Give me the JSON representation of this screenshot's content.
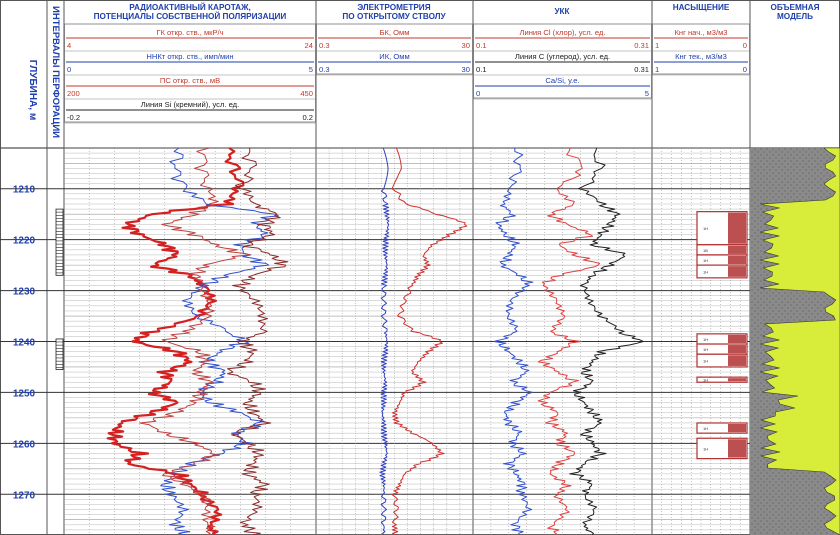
{
  "colors": {
    "border": "#555555",
    "header_blue": "#1f3fae",
    "header_red": "#c0392b",
    "gr_curve": "#d42020",
    "nnk_curve": "#3050d0",
    "ps_curve": "#c04040",
    "si_curve": "#8a2a2a",
    "bk_curve": "#d03030",
    "ik_curve": "#3040c0",
    "cl_curve": "#e04040",
    "c_curve": "#202020",
    "casi_curve": "#3050d0",
    "sat_fill": "#b03030",
    "model_gray": "#8a8a8a",
    "model_yellow": "#d8ec3a"
  },
  "depth_column": {
    "title": "ГЛУБИНА, м"
  },
  "perf_column": {
    "title": "ИНТЕРВАЛЫ ПЕРФОРАЦИИ"
  },
  "tracks": {
    "radio": {
      "title": "РАДИОАКТИВНЫЙ КАРОТАЖ,\nПОТЕНЦИАЛЫ СОБСТВЕННОЙ ПОЛЯРИЗАЦИИ",
      "scales": [
        {
          "label": "ГК откр. ств., мкР/ч",
          "min": "4",
          "max": "24",
          "color_key": "red"
        },
        {
          "label": "ННКт откр. ств., имп/мин",
          "min": "0",
          "max": "5",
          "color_key": "blue"
        },
        {
          "label": "ПС откр. ств., мВ",
          "min": "200",
          "max": "450",
          "color_key": "red"
        },
        {
          "label": "Линия Si (кремний), усл. ед.",
          "min": "-0.2",
          "max": "0.2",
          "color_key": "dark"
        }
      ]
    },
    "electro": {
      "title": "ЭЛЕКТРОМЕТРИЯ\nПО ОТКРЫТОМУ СТВОЛУ",
      "scales": [
        {
          "label": "БК, Омм",
          "min": "0.3",
          "max": "30",
          "color_key": "red"
        },
        {
          "label": "ИК, Омм",
          "min": "0.3",
          "max": "30",
          "color_key": "blue"
        }
      ]
    },
    "ukk": {
      "title": "УКК",
      "scales": [
        {
          "label": "Линия Cl (хлор), усл. ед.",
          "min": "0.1",
          "max": "0.31",
          "color_key": "red"
        },
        {
          "label": "Линия C (углерод), усл. ед.",
          "min": "0.1",
          "max": "0.31",
          "color_key": "dark"
        },
        {
          "label": "Ca/Si, у.е.",
          "min": "0",
          "max": "5",
          "color_key": "blue"
        }
      ]
    },
    "saturation": {
      "title": "НАСЫЩЕНИЕ",
      "scales": [
        {
          "label": "Кнг нач., м3/м3",
          "min": "1",
          "max": "0",
          "color_key": "red"
        },
        {
          "label": "Кнг тек., м3/м3",
          "min": "1",
          "max": "0",
          "color_key": "blue"
        }
      ]
    },
    "model": {
      "title": "ОБЪЕМНАЯ\nМОДЕЛЬ"
    }
  },
  "chart_data": {
    "type": "line",
    "depth_range": [
      1202,
      1278
    ],
    "depth_ticks": [
      1210,
      1220,
      1230,
      1240,
      1250,
      1260,
      1270
    ],
    "perforation_intervals": [
      [
        1214,
        1227
      ],
      [
        1239.5,
        1245.5
      ]
    ],
    "sat_intervals": [
      {
        "top": 1214.5,
        "bottom": 1221,
        "label": "1Н"
      },
      {
        "top": 1221,
        "bottom": 1223,
        "label": "1В"
      },
      {
        "top": 1223,
        "bottom": 1225,
        "label": "1Н"
      },
      {
        "top": 1225,
        "bottom": 1227.5,
        "label": "1Н"
      },
      {
        "top": 1238.5,
        "bottom": 1240.5,
        "label": "1Н"
      },
      {
        "top": 1240.5,
        "bottom": 1242.5,
        "label": "1Н"
      },
      {
        "top": 1242.5,
        "bottom": 1245,
        "label": "1Н"
      },
      {
        "top": 1247,
        "bottom": 1248,
        "label": "1Н"
      },
      {
        "top": 1256,
        "bottom": 1258,
        "label": "1Н"
      },
      {
        "top": 1259,
        "bottom": 1263,
        "label": "1Н"
      }
    ],
    "series": [
      {
        "name": "ГК откр. ств., мкР/ч",
        "track": "radio",
        "min": 4,
        "max": 24,
        "depth": [
          1202,
          1206,
          1210,
          1213,
          1215,
          1217,
          1219,
          1221,
          1223,
          1225,
          1227,
          1229,
          1232,
          1235,
          1238,
          1240,
          1242,
          1244,
          1246,
          1248,
          1250,
          1252,
          1254,
          1256,
          1258,
          1260,
          1262,
          1264,
          1266,
          1268,
          1270,
          1273,
          1276,
          1278
        ],
        "values": [
          17,
          17.5,
          18,
          17,
          11,
          9,
          10,
          12,
          13,
          11,
          14,
          15,
          16,
          15,
          11,
          9.5,
          13,
          14,
          12,
          12.5,
          11,
          13,
          11,
          8.5,
          8,
          8,
          10,
          9,
          13,
          14,
          15,
          16,
          15.5,
          16
        ]
      },
      {
        "name": "ННКт откр. ств., имп/мин",
        "track": "radio",
        "min": 0,
        "max": 5,
        "depth": [
          1202,
          1206,
          1210,
          1213,
          1215,
          1217,
          1219,
          1221,
          1223,
          1225,
          1227,
          1229,
          1232,
          1235,
          1238,
          1240,
          1242,
          1244,
          1246,
          1248,
          1250,
          1252,
          1254,
          1256,
          1258,
          1260,
          1262,
          1264,
          1266,
          1268,
          1270,
          1273,
          1276,
          1278
        ],
        "values": [
          2.3,
          2.2,
          2.4,
          2.8,
          4.2,
          3.8,
          4,
          3.5,
          3.6,
          4,
          3.2,
          2.8,
          2.5,
          2.6,
          3.2,
          3.6,
          3.1,
          2.8,
          3.2,
          3,
          2.7,
          2.9,
          3.5,
          3.9,
          3.4,
          3.6,
          3.1,
          2.5,
          2.2,
          2.0,
          2.1,
          2.3,
          2.2,
          2.4
        ]
      },
      {
        "name": "ПС откр. ств., мВ",
        "track": "radio",
        "min": 200,
        "max": 450,
        "depth": [
          1202,
          1206,
          1210,
          1213,
          1215,
          1217,
          1219,
          1221,
          1223,
          1225,
          1227,
          1229,
          1232,
          1235,
          1238,
          1240,
          1242,
          1244,
          1246,
          1248,
          1250,
          1252,
          1254,
          1256,
          1258,
          1260,
          1262,
          1264,
          1266,
          1268,
          1270,
          1273,
          1276,
          1278
        ],
        "values": [
          340,
          338,
          342,
          345,
          330,
          300,
          330,
          350,
          380,
          340,
          330,
          340,
          345,
          340,
          320,
          300,
          335,
          340,
          330,
          345,
          335,
          330,
          310,
          280,
          300,
          330,
          350,
          330,
          300,
          320,
          335,
          340,
          345,
          342
        ]
      },
      {
        "name": "Линия Si (кремний), усл. ед.",
        "track": "radio",
        "min": -0.2,
        "max": 0.2,
        "depth": [
          1202,
          1206,
          1210,
          1213,
          1215,
          1217,
          1219,
          1221,
          1223,
          1225,
          1227,
          1229,
          1232,
          1235,
          1238,
          1240,
          1242,
          1244,
          1246,
          1248,
          1250,
          1252,
          1254,
          1256,
          1258,
          1260,
          1262,
          1264,
          1266,
          1268,
          1270,
          1273,
          1276,
          1278
        ],
        "values": [
          0.09,
          0.1,
          0.08,
          0.1,
          0.14,
          0.12,
          0.13,
          0.09,
          0.13,
          0.15,
          0.1,
          0.08,
          0.1,
          0.11,
          0.12,
          0.08,
          0.1,
          0.09,
          0.06,
          0.1,
          0.11,
          0.09,
          0.1,
          0.12,
          0.07,
          0.09,
          0.11,
          0.1,
          0.09,
          0.12,
          0.1,
          0.11,
          0.09,
          0.1
        ]
      },
      {
        "name": "БК, Омм",
        "track": "electro",
        "min": 0.3,
        "max": 30,
        "depth": [
          1202,
          1206,
          1210,
          1213,
          1215,
          1217,
          1219,
          1221,
          1223,
          1225,
          1227,
          1229,
          1232,
          1235,
          1238,
          1240,
          1242,
          1244,
          1246,
          1248,
          1250,
          1252,
          1254,
          1256,
          1258,
          1260,
          1262,
          1264,
          1266,
          1268,
          1270,
          1273,
          1276,
          1278
        ],
        "values": [
          3,
          3.5,
          3,
          4,
          10,
          25,
          15,
          9,
          7,
          8,
          6,
          5,
          4,
          3.5,
          5,
          12,
          8,
          6,
          5,
          7,
          4,
          3.5,
          3,
          3.2,
          5,
          9,
          12,
          6,
          4,
          3.5,
          3,
          3.2,
          3,
          3.1
        ]
      },
      {
        "name": "ИК, Омм",
        "track": "electro",
        "min": 0.3,
        "max": 30,
        "depth": [
          1202,
          1206,
          1210,
          1213,
          1215,
          1217,
          1219,
          1221,
          1223,
          1225,
          1227,
          1229,
          1232,
          1235,
          1238,
          1240,
          1242,
          1244,
          1246,
          1248,
          1250,
          1252,
          1254,
          1256,
          1258,
          1260,
          1262,
          1264,
          1266,
          1268,
          1270,
          1273,
          1276,
          1278
        ],
        "values": [
          2.2,
          2.3,
          2.2,
          2.3,
          2.4,
          2.5,
          2.4,
          2.3,
          2.3,
          2.4,
          2.3,
          2.2,
          2.2,
          2.2,
          2.3,
          2.4,
          2.3,
          2.2,
          2.2,
          2.3,
          2.2,
          2.2,
          2.1,
          2.2,
          2.2,
          2.3,
          2.4,
          2.2,
          2.1,
          2.2,
          2.2,
          2.2,
          2.2,
          2.2
        ]
      },
      {
        "name": "Линия Cl (хлор), усл. ед.",
        "track": "ukk",
        "min": 0.1,
        "max": 0.31,
        "depth": [
          1202,
          1206,
          1210,
          1213,
          1215,
          1217,
          1219,
          1221,
          1223,
          1225,
          1227,
          1229,
          1232,
          1235,
          1238,
          1240,
          1242,
          1244,
          1246,
          1248,
          1250,
          1252,
          1254,
          1256,
          1258,
          1260,
          1262,
          1264,
          1266,
          1268,
          1270,
          1273,
          1276,
          1278
        ],
        "values": [
          0.21,
          0.23,
          0.2,
          0.22,
          0.19,
          0.21,
          0.24,
          0.2,
          0.22,
          0.25,
          0.2,
          0.18,
          0.2,
          0.21,
          0.19,
          0.22,
          0.2,
          0.18,
          0.2,
          0.22,
          0.19,
          0.18,
          0.2,
          0.19,
          0.21,
          0.2,
          0.22,
          0.2,
          0.19,
          0.21,
          0.2,
          0.21,
          0.19,
          0.2
        ]
      },
      {
        "name": "Линия C (углерод), усл. ед.",
        "track": "ukk",
        "min": 0.1,
        "max": 0.31,
        "depth": [
          1202,
          1206,
          1210,
          1213,
          1215,
          1217,
          1219,
          1221,
          1223,
          1225,
          1227,
          1229,
          1232,
          1235,
          1238,
          1240,
          1242,
          1244,
          1246,
          1248,
          1250,
          1252,
          1254,
          1256,
          1258,
          1260,
          1262,
          1264,
          1266,
          1268,
          1270,
          1273,
          1276,
          1278
        ],
        "values": [
          0.24,
          0.25,
          0.23,
          0.25,
          0.27,
          0.26,
          0.25,
          0.24,
          0.28,
          0.26,
          0.24,
          0.23,
          0.24,
          0.25,
          0.27,
          0.3,
          0.25,
          0.24,
          0.23,
          0.24,
          0.22,
          0.23,
          0.24,
          0.25,
          0.23,
          0.24,
          0.25,
          0.23,
          0.22,
          0.24,
          0.23,
          0.24,
          0.23,
          0.24
        ]
      },
      {
        "name": "Ca/Si, у.е.",
        "track": "ukk",
        "min": 0,
        "max": 5,
        "depth": [
          1202,
          1206,
          1210,
          1213,
          1215,
          1217,
          1219,
          1221,
          1223,
          1225,
          1227,
          1229,
          1232,
          1235,
          1238,
          1240,
          1242,
          1244,
          1246,
          1248,
          1250,
          1252,
          1254,
          1256,
          1258,
          1260,
          1262,
          1264,
          1266,
          1268,
          1270,
          1273,
          1276,
          1278
        ],
        "values": [
          1.2,
          1.3,
          1.0,
          0.8,
          1.1,
          0.7,
          0.9,
          1.2,
          1.0,
          0.8,
          1.3,
          1.6,
          1.1,
          0.9,
          1.2,
          0.7,
          1.0,
          1.3,
          1.5,
          1.1,
          1.6,
          1.2,
          0.9,
          1.0,
          1.3,
          1.1,
          1.4,
          1.0,
          1.2,
          1.4,
          1.3,
          1.5,
          1.2,
          1.3
        ]
      }
    ]
  }
}
